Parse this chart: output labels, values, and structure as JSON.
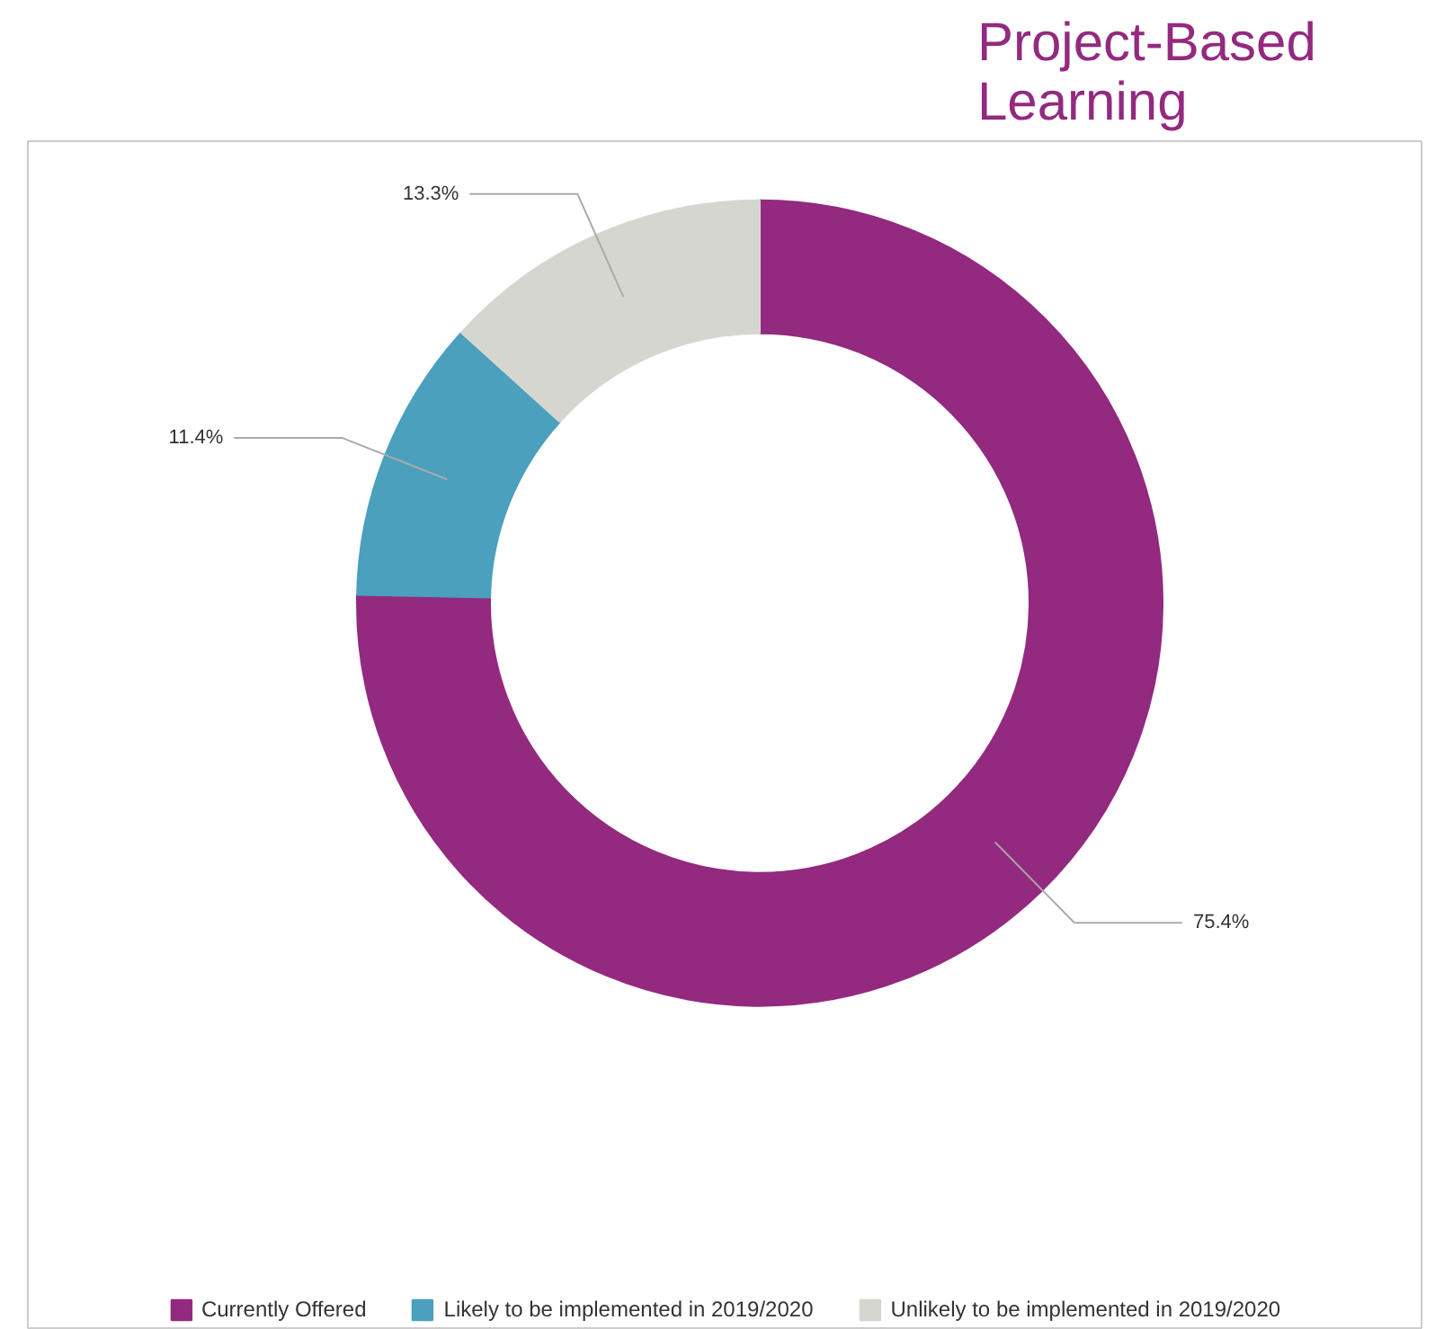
{
  "chart_data": {
    "type": "donut",
    "title": "Project-Based Learning",
    "categories": [
      "Currently Offered",
      "Likely to be implemented in 2019/2020",
      "Unlikely to be implemented in 2019/2020"
    ],
    "values": [
      75.4,
      11.4,
      13.3
    ],
    "colors": [
      "#932a7f",
      "#4aa0bd",
      "#d6d6d1"
    ],
    "value_labels": [
      "75.4%",
      "11.4%",
      "13.3%"
    ],
    "legend": "bottom"
  }
}
